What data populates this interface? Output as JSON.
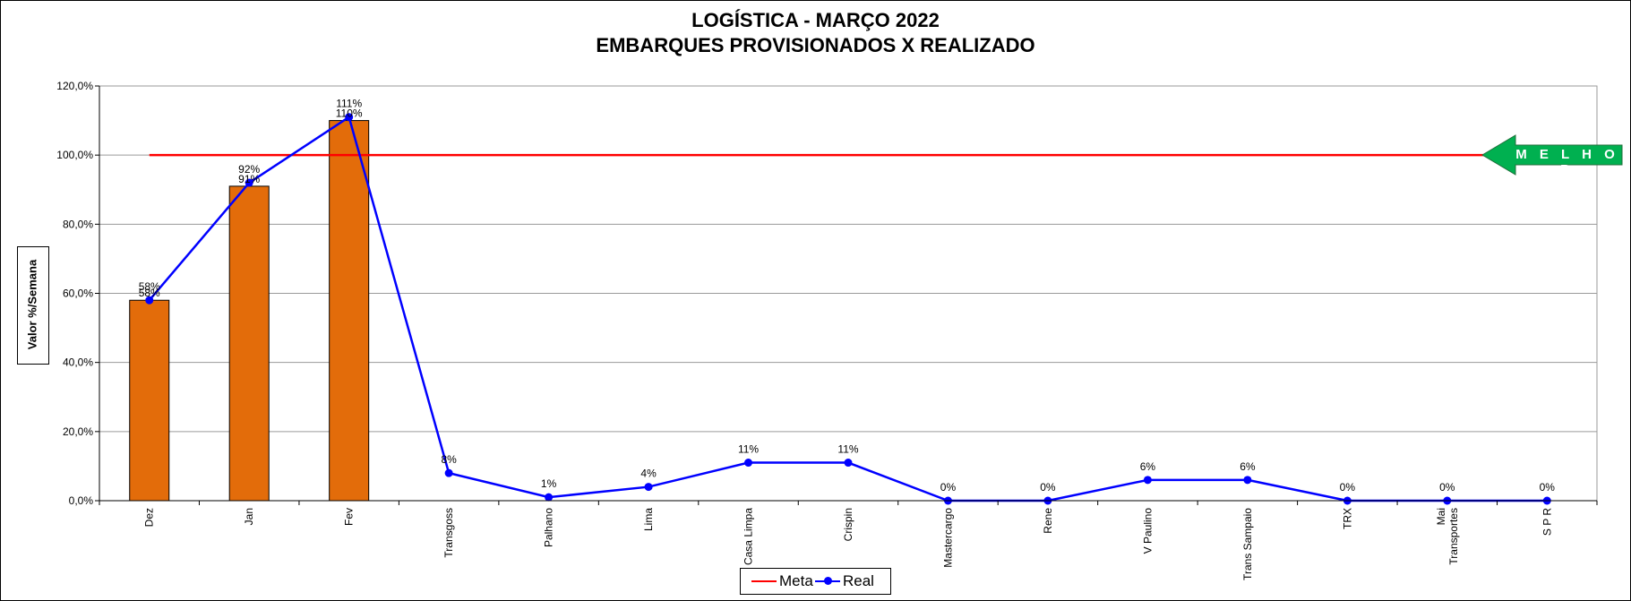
{
  "title_line1": "LOGÍSTICA - MARÇO 2022",
  "title_line2": "EMBARQUES PROVISIONADOS X REALIZADO",
  "badge": {
    "label": "M E L H O R",
    "color": "#00b050"
  },
  "legend": {
    "meta_label": "Meta",
    "real_label": "Real"
  },
  "colors": {
    "bar": "#e36c0a",
    "meta": "#ff0000",
    "real": "#0000ff",
    "grid": "#9a9a9a"
  },
  "chart_data": {
    "type": "bar",
    "title": "LOGÍSTICA - MARÇO 2022 / EMBARQUES PROVISIONADOS X REALIZADO",
    "ylabel": "Valor %/Semana",
    "xlabel": "",
    "ylim": [
      0,
      120
    ],
    "yticks": [
      "0,0%",
      "20,0%",
      "40,0%",
      "60,0%",
      "80,0%",
      "100,0%",
      "120,0%"
    ],
    "categories": [
      "Dez",
      "Jan",
      "Fev",
      "Transgoss",
      "Palhano",
      "Lima",
      "Casa Limpa",
      "Crispin",
      "Mastercargo",
      "Rene",
      "V Paulino",
      "Trans Sampaio",
      "TRX",
      "Mai Transportes",
      "S P R"
    ],
    "category_lines": [
      [
        "Dez"
      ],
      [
        "Jan"
      ],
      [
        "Fev"
      ],
      [
        "Transgoss"
      ],
      [
        "Palhano"
      ],
      [
        "Lima"
      ],
      [
        "Casa Limpa"
      ],
      [
        "Crispin"
      ],
      [
        "Mastercargo"
      ],
      [
        "Rene"
      ],
      [
        "V Paulino"
      ],
      [
        "Trans Sampaio"
      ],
      [
        "TRX"
      ],
      [
        "Mai",
        "Transportes"
      ],
      [
        "S P R"
      ]
    ],
    "bars": {
      "values": [
        58,
        91,
        110,
        null,
        null,
        null,
        null,
        null,
        null,
        null,
        null,
        null,
        null,
        null,
        null
      ],
      "labels": [
        "58%",
        "91%",
        "110%",
        "",
        "",
        "",
        "",
        "",
        "",
        "",
        "",
        "",
        "",
        "",
        ""
      ]
    },
    "series": [
      {
        "name": "Real",
        "type": "line",
        "values": [
          58,
          92,
          111,
          8,
          1,
          4,
          11,
          11,
          0,
          0,
          6,
          6,
          0,
          0,
          0
        ],
        "labels": [
          "58%",
          "92%",
          "111%",
          "8%",
          "1%",
          "4%",
          "11%",
          "11%",
          "0%",
          "0%",
          "6%",
          "6%",
          "0%",
          "0%",
          "0%"
        ]
      },
      {
        "name": "Meta",
        "type": "line",
        "values": [
          100,
          100,
          100,
          100,
          100,
          100,
          100,
          100,
          100,
          100,
          100,
          100,
          100,
          100,
          100
        ]
      }
    ],
    "grid": true,
    "legend_position": "bottom"
  }
}
